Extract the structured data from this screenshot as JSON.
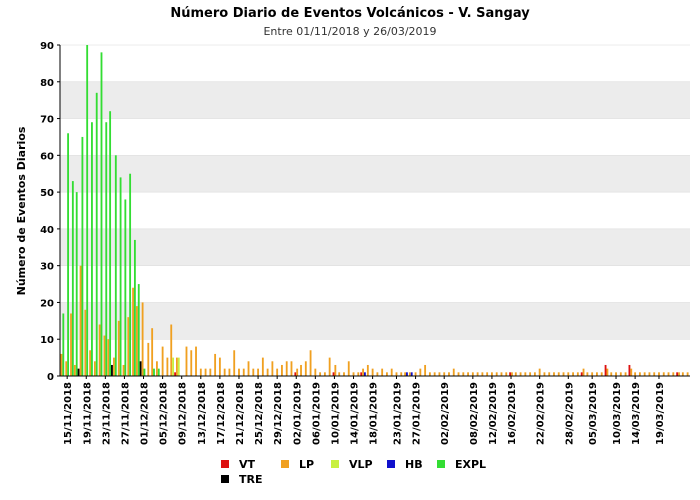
{
  "chart_data": {
    "type": "bar",
    "title": "Número Diario de Eventos Volcánicos -  V. Sangay",
    "subtitle": "Entre 01/11/2018 y 26/03/2019",
    "xlabel": "",
    "ylabel": "Número de Eventos Diarios",
    "ylim": [
      0,
      90
    ],
    "yticks": [
      0,
      10,
      20,
      30,
      40,
      50,
      60,
      70,
      80,
      90
    ],
    "x_start": "14/11/2018",
    "xtick_labels": [
      "15/11/2018",
      "19/11/2018",
      "23/11/2018",
      "27/11/2018",
      "01/12/2018",
      "05/12/2018",
      "09/12/2018",
      "13/12/2018",
      "17/12/2018",
      "21/12/2018",
      "25/12/2018",
      "29/12/2018",
      "02/01/2019",
      "06/01/2019",
      "10/01/2019",
      "14/01/2019",
      "18/01/2019",
      "23/01/2019",
      "27/01/2019",
      "02/02/2019",
      "08/02/2019",
      "12/02/2019",
      "16/02/2019",
      "22/02/2019",
      "28/02/2019",
      "05/03/2019",
      "10/03/2019",
      "14/03/2019",
      "19/03/2019"
    ],
    "grid": "horizontal bands",
    "legend_position": "bottom",
    "series": [
      {
        "name": "VT",
        "color": "#dd1111",
        "values": [
          0,
          0,
          0,
          0,
          0,
          0,
          0,
          0,
          0,
          0,
          0,
          0,
          0,
          0,
          0,
          0,
          0,
          0,
          0,
          0,
          0,
          0,
          0,
          0,
          1,
          0,
          0,
          0,
          0,
          0,
          0,
          0,
          0,
          0,
          0,
          0,
          0,
          0,
          0,
          0,
          0,
          0,
          0,
          0,
          0,
          0,
          0,
          0,
          0,
          1,
          0,
          0,
          0,
          0,
          0,
          0,
          0,
          1,
          0,
          0,
          0,
          0,
          0,
          1,
          0,
          0,
          0,
          0,
          0,
          0,
          0,
          0,
          0,
          0,
          0,
          0,
          0,
          0,
          0,
          0,
          0,
          0,
          0,
          0,
          0,
          0,
          0,
          0,
          0,
          0,
          0,
          0,
          0,
          0,
          1,
          0,
          0,
          0,
          0,
          0,
          0,
          0,
          0,
          0,
          0,
          0,
          0,
          0,
          0,
          1,
          0,
          0,
          0,
          0,
          3,
          0,
          0,
          0,
          0,
          3,
          0,
          0,
          0,
          0,
          0,
          0,
          0,
          0,
          0,
          1,
          0,
          0
        ]
      },
      {
        "name": "LP",
        "color": "#f0a020",
        "values": [
          6,
          4,
          17,
          3,
          30,
          18,
          7,
          4,
          14,
          11,
          10,
          5,
          15,
          3,
          16,
          24,
          19,
          20,
          9,
          13,
          4,
          8,
          5,
          14,
          5,
          0,
          8,
          7,
          8,
          2,
          2,
          2,
          6,
          5,
          2,
          2,
          7,
          2,
          2,
          4,
          2,
          2,
          5,
          2,
          4,
          2,
          3,
          4,
          4,
          2,
          3,
          4,
          7,
          2,
          1,
          1,
          5,
          3,
          1,
          1,
          4,
          1,
          1,
          2,
          3,
          2,
          1,
          2,
          1,
          2,
          1,
          1,
          1,
          1,
          1,
          2,
          3,
          1,
          1,
          1,
          1,
          1,
          2,
          1,
          1,
          1,
          1,
          1,
          1,
          1,
          1,
          1,
          1,
          1,
          1,
          1,
          1,
          1,
          1,
          1,
          2,
          1,
          1,
          1,
          1,
          1,
          1,
          1,
          1,
          2,
          1,
          1,
          1,
          1,
          2,
          1,
          1,
          1,
          1,
          2,
          1,
          1,
          1,
          1,
          1,
          1,
          1,
          1,
          1,
          1,
          1,
          1
        ]
      },
      {
        "name": "VLP",
        "color": "#c8f040",
        "values": [
          0,
          0,
          0,
          0,
          0,
          0,
          0,
          0,
          0,
          0,
          0,
          0,
          0,
          0,
          0,
          0,
          0,
          0,
          0,
          0,
          0,
          0,
          0,
          5,
          5,
          0,
          0,
          0,
          0,
          0,
          0,
          0,
          0,
          0,
          0,
          0,
          0,
          0,
          0,
          0,
          0,
          0,
          0,
          0,
          0,
          0,
          0,
          0,
          0,
          0,
          0,
          0,
          0,
          0,
          0,
          0,
          0,
          0,
          0,
          0,
          0,
          0,
          0,
          0,
          0,
          0,
          0,
          0,
          0,
          0,
          0,
          0,
          0,
          0,
          0,
          0,
          0,
          0,
          0,
          0,
          0,
          0,
          0,
          0,
          0,
          0,
          0,
          0,
          0,
          0,
          0,
          0,
          0,
          0,
          0,
          0,
          0,
          0,
          0,
          0,
          0,
          0,
          0,
          0,
          0,
          0,
          0,
          0,
          0,
          0,
          0,
          0,
          0,
          0,
          0,
          0,
          0,
          0,
          0,
          0,
          0,
          0,
          0,
          0,
          0,
          0,
          0,
          0,
          0,
          0,
          0,
          0
        ]
      },
      {
        "name": "HB",
        "color": "#1010cc",
        "values": [
          0,
          0,
          0,
          0,
          0,
          0,
          0,
          0,
          0,
          0,
          0,
          0,
          0,
          0,
          0,
          0,
          0,
          0,
          0,
          0,
          0,
          0,
          0,
          0,
          0,
          0,
          0,
          0,
          0,
          0,
          0,
          0,
          0,
          0,
          0,
          0,
          0,
          0,
          0,
          0,
          0,
          0,
          0,
          0,
          0,
          0,
          0,
          0,
          0,
          0,
          0,
          0,
          0,
          0,
          0,
          0,
          0,
          0,
          0,
          0,
          0,
          0,
          0,
          1,
          0,
          0,
          0,
          0,
          0,
          0,
          0,
          0,
          1,
          1,
          0,
          0,
          0,
          0,
          0,
          0,
          0,
          0,
          0,
          0,
          0,
          0,
          0,
          0,
          0,
          0,
          0,
          0,
          0,
          0,
          0,
          0,
          0,
          0,
          0,
          0,
          0,
          0,
          0,
          0,
          0,
          0,
          0,
          0,
          0,
          0,
          0,
          0,
          0,
          0,
          0,
          0,
          0,
          0,
          0,
          0,
          0,
          0,
          0,
          0,
          0,
          0,
          0,
          0,
          0,
          0,
          0,
          0
        ]
      },
      {
        "name": "EXPL",
        "color": "#33dd33",
        "values": [
          17,
          66,
          53,
          50,
          65,
          90,
          69,
          77,
          88,
          69,
          72,
          60,
          54,
          48,
          55,
          37,
          25,
          2,
          0,
          2,
          2,
          0,
          0,
          0,
          0,
          0,
          0,
          0,
          0,
          0,
          0,
          0,
          0,
          0,
          0,
          0,
          0,
          0,
          0,
          0,
          0,
          0,
          0,
          0,
          0,
          0,
          0,
          0,
          0,
          0,
          0,
          0,
          0,
          0,
          0,
          0,
          0,
          0,
          0,
          0,
          0,
          0,
          0,
          0,
          0,
          0,
          0,
          0,
          0,
          0,
          0,
          0,
          0,
          0,
          0,
          0,
          0,
          0,
          0,
          0,
          0,
          0,
          0,
          0,
          0,
          0,
          0,
          0,
          0,
          0,
          0,
          0,
          0,
          0,
          0,
          0,
          0,
          0,
          0,
          0,
          0,
          0,
          0,
          0,
          0,
          0,
          0,
          0,
          0,
          0,
          0,
          0,
          0,
          0,
          0,
          0,
          0,
          0,
          0,
          0,
          0,
          0,
          0,
          0,
          0,
          0,
          0,
          0,
          0,
          0,
          0,
          0
        ]
      },
      {
        "name": "TRE",
        "color": "#000000",
        "values": [
          0,
          0,
          0,
          2,
          0,
          0,
          0,
          0,
          0,
          0,
          3,
          0,
          0,
          0,
          0,
          0,
          4,
          0,
          0,
          0,
          0,
          0,
          0,
          0,
          0,
          0,
          0,
          0,
          0,
          0,
          0,
          0,
          0,
          0,
          0,
          0,
          0,
          0,
          0,
          0,
          0,
          0,
          0,
          0,
          0,
          0,
          0,
          0,
          0,
          0,
          0,
          0,
          0,
          0,
          0,
          0,
          0,
          0,
          0,
          0,
          0,
          0,
          0,
          0,
          0,
          0,
          0,
          0,
          0,
          0,
          0,
          0,
          0,
          0,
          0,
          0,
          0,
          0,
          0,
          0,
          0,
          0,
          0,
          0,
          0,
          0,
          0,
          0,
          0,
          0,
          0,
          0,
          0,
          0,
          0,
          0,
          0,
          0,
          0,
          0,
          0,
          0,
          0,
          0,
          0,
          0,
          0,
          0,
          0,
          0,
          0,
          0,
          0,
          0,
          0,
          0,
          0,
          0,
          0,
          0,
          0,
          0,
          0,
          0,
          0,
          0,
          0,
          0,
          0,
          0,
          0,
          0
        ]
      }
    ]
  }
}
